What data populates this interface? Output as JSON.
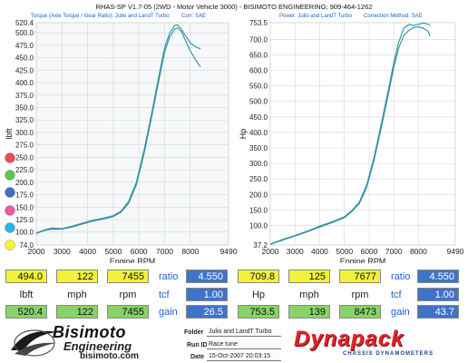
{
  "header": {
    "title": "RHAS-SP V1.7-05   (2WD - Motor Vehicle 3000)  - BISIMOTO ENGINEERING; 909-464-1262",
    "torque_caption": "Torque (Axle Torque / Gear Ratio):  Julio and LandT Turbo",
    "torque_corr": "Corr: SAE",
    "power_caption": "Power: Julio and LandT Turbo",
    "power_corr": "Correction Method: SAE"
  },
  "chart_data": [
    {
      "type": "line",
      "ylabel": "lbft",
      "xlabel": "Engine RPM",
      "x_ticks": [
        "2000",
        "3000",
        "4000",
        "5000",
        "6000",
        "7000",
        "8000",
        "9490"
      ],
      "xlim": [
        2000,
        9490
      ],
      "y_ticks": [
        "520.4",
        "500.0",
        "475.0",
        "450.0",
        "425.0",
        "400.0",
        "375.0",
        "350.0",
        "325.0",
        "300.0",
        "275.0",
        "250.0",
        "225.0",
        "200.0",
        "175.0",
        "150.0",
        "125.0",
        "100.0",
        "74.0"
      ],
      "ylim": [
        74.0,
        520.4
      ],
      "series": [
        {
          "x": [
            2000,
            2300,
            2600,
            3000,
            3400,
            3800,
            4200,
            4600,
            5000,
            5300,
            5600,
            5900,
            6200,
            6500,
            6800,
            7000,
            7200,
            7400,
            7500,
            7650,
            7800,
            8000,
            8200,
            8400
          ],
          "y": [
            98,
            104,
            108,
            107,
            112,
            118,
            124,
            128,
            133,
            142,
            162,
            200,
            265,
            340,
            420,
            470,
            500,
            515,
            516,
            508,
            495,
            480,
            472,
            468
          ]
        },
        {
          "x": [
            2000,
            2300,
            2600,
            3000,
            3400,
            3800,
            4200,
            4600,
            5000,
            5300,
            5600,
            5900,
            6200,
            6500,
            6800,
            7000,
            7200,
            7400,
            7500,
            7650,
            7800,
            8000,
            8200,
            8400
          ],
          "y": [
            97,
            103,
            106,
            106,
            110,
            116,
            122,
            126,
            131,
            140,
            158,
            195,
            258,
            333,
            412,
            462,
            492,
            508,
            510,
            503,
            486,
            464,
            446,
            432
          ]
        }
      ]
    },
    {
      "type": "line",
      "ylabel": "Hp",
      "xlabel": "Engine RPM",
      "x_ticks": [
        "2000",
        "3000",
        "4000",
        "5000",
        "6000",
        "7000",
        "8000",
        "9490"
      ],
      "xlim": [
        2000,
        9490
      ],
      "y_ticks": [
        "753.5",
        "700.0",
        "650.0",
        "600.0",
        "550.0",
        "500.0",
        "450.0",
        "400.0",
        "350.0",
        "300.0",
        "250.0",
        "200.0",
        "150.0",
        "100.0",
        "37.2"
      ],
      "ylim": [
        37.2,
        753.5
      ],
      "series": [
        {
          "x": [
            2000,
            2500,
            3000,
            3500,
            4000,
            4500,
            5000,
            5300,
            5600,
            5900,
            6200,
            6500,
            6800,
            7000,
            7200,
            7400,
            7600,
            7800,
            8000,
            8200,
            8400,
            8470
          ],
          "y": [
            40,
            55,
            68,
            82,
            98,
            112,
            128,
            148,
            175,
            230,
            320,
            430,
            545,
            625,
            690,
            735,
            748,
            745,
            748,
            752,
            748,
            745
          ]
        },
        {
          "x": [
            2000,
            2500,
            3000,
            3500,
            4000,
            4500,
            5000,
            5300,
            5600,
            5900,
            6200,
            6500,
            6800,
            7000,
            7200,
            7400,
            7600,
            7800,
            8000,
            8200,
            8400,
            8470
          ],
          "y": [
            39,
            53,
            66,
            80,
            95,
            109,
            125,
            145,
            170,
            222,
            310,
            418,
            530,
            610,
            672,
            712,
            728,
            738,
            740,
            735,
            725,
            710
          ]
        }
      ]
    }
  ],
  "colors": {
    "curve": "#2f8fa2",
    "grid": "#d4d8dc",
    "axis_text": "#222222",
    "caption_blue": "#1f5fd0",
    "panel_left_bg": "#eef1f4",
    "yellow": "#f2f23a",
    "green": "#86d466",
    "blue": "#3f73c8",
    "indicators": [
      "#e84a5a",
      "#5dc45a",
      "#3d6fc4",
      "#e85aa0",
      "#25b7e8",
      "#f2f23a"
    ]
  },
  "readouts": {
    "left": {
      "row1": [
        "494.0",
        "122",
        "7455"
      ],
      "labels": [
        "lbft",
        "mph",
        "rpm"
      ],
      "row3": [
        "520.4",
        "122",
        "7455"
      ],
      "ratio_label": "ratio",
      "ratio_value": "4.550",
      "tcf_label": "tcf",
      "tcf_value": "1.00",
      "gain_label": "gain",
      "gain_value": "26.5"
    },
    "right": {
      "row1": [
        "709.8",
        "125",
        "7677"
      ],
      "labels": [
        "Hp",
        "mph",
        "rpm"
      ],
      "row3": [
        "753.5",
        "139",
        "8473"
      ],
      "ratio_label": "ratio",
      "ratio_value": "4.550",
      "tcf_label": "tcf",
      "tcf_value": "1.00",
      "gain_label": "gain",
      "gain_value": "43.7"
    }
  },
  "footer": {
    "bisimoto_brand": "Bisimoto",
    "bisimoto_sub": "Engineering",
    "bisimoto_site": "bisimoto.com",
    "folder_label": "Folder",
    "folder_value": "Julio and LandT Turbo",
    "runid_label": "Run ID",
    "runid_value": "Race tune",
    "date_label": "Date",
    "date_value": "15-Oct-2007  20:03:15",
    "dynapack_brand": "Dynapack",
    "dynapack_sub": "CHASSIS DYNAMOMETERS"
  }
}
